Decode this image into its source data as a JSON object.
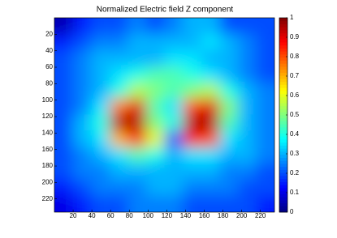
{
  "chart_data": {
    "type": "heatmap",
    "title": "Normalized Electric field Z component",
    "colormap": "jet",
    "x": [
      10,
      29,
      49,
      69,
      88,
      108,
      127,
      147,
      167,
      186,
      206,
      225
    ],
    "y": [
      10,
      29,
      49,
      69,
      88,
      108,
      127,
      147,
      167,
      186,
      206,
      225
    ],
    "z": [
      [
        0.05,
        0.15,
        0.2,
        0.2,
        0.25,
        0.2,
        0.25,
        0.3,
        0.3,
        0.2,
        0.2,
        0.2
      ],
      [
        0.15,
        0.2,
        0.25,
        0.25,
        0.3,
        0.3,
        0.3,
        0.3,
        0.35,
        0.3,
        0.25,
        0.2
      ],
      [
        0.2,
        0.25,
        0.3,
        0.3,
        0.3,
        0.3,
        0.35,
        0.35,
        0.3,
        0.3,
        0.25,
        0.2
      ],
      [
        0.2,
        0.25,
        0.3,
        0.35,
        0.4,
        0.45,
        0.45,
        0.4,
        0.35,
        0.3,
        0.25,
        0.2
      ],
      [
        0.2,
        0.25,
        0.3,
        0.4,
        0.55,
        0.5,
        0.45,
        0.5,
        0.55,
        0.4,
        0.3,
        0.25
      ],
      [
        0.2,
        0.25,
        0.35,
        0.75,
        0.9,
        0.45,
        0.35,
        0.8,
        0.9,
        0.5,
        0.3,
        0.25
      ],
      [
        0.2,
        0.3,
        0.4,
        0.95,
        0.95,
        0.5,
        0.4,
        0.95,
        0.95,
        0.45,
        0.3,
        0.25
      ],
      [
        0.2,
        0.3,
        0.35,
        0.7,
        0.85,
        0.6,
        0.2,
        0.85,
        0.8,
        0.35,
        0.3,
        0.25
      ],
      [
        0.2,
        0.25,
        0.3,
        0.35,
        0.45,
        0.4,
        0.3,
        0.35,
        0.35,
        0.3,
        0.3,
        0.25
      ],
      [
        0.2,
        0.25,
        0.25,
        0.3,
        0.3,
        0.3,
        0.3,
        0.3,
        0.3,
        0.25,
        0.25,
        0.2
      ],
      [
        0.15,
        0.2,
        0.25,
        0.25,
        0.25,
        0.3,
        0.3,
        0.25,
        0.25,
        0.25,
        0.2,
        0.2
      ],
      [
        0.1,
        0.15,
        0.2,
        0.2,
        0.25,
        0.25,
        0.25,
        0.2,
        0.2,
        0.2,
        0.2,
        0.15
      ]
    ],
    "xlim": [
      0,
      235
    ],
    "ylim": [
      0,
      236
    ],
    "xticks": [
      20,
      40,
      60,
      80,
      100,
      120,
      140,
      160,
      180,
      200,
      220
    ],
    "yticks": [
      20,
      40,
      60,
      80,
      100,
      120,
      140,
      160,
      180,
      200,
      220
    ],
    "clim": [
      0,
      1
    ],
    "cticks": [
      0,
      0.1,
      0.2,
      0.3,
      0.4,
      0.5,
      0.6,
      0.7,
      0.8,
      0.9,
      1
    ]
  }
}
